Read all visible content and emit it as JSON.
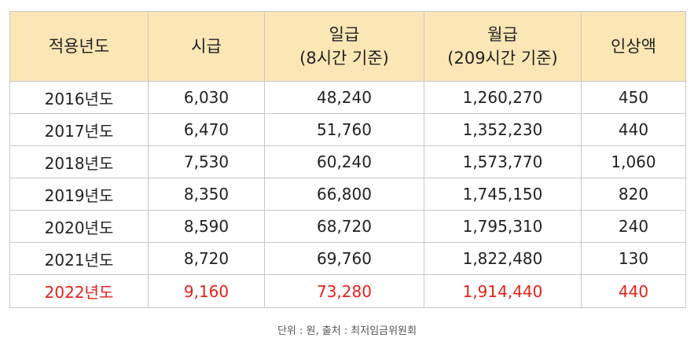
{
  "headers": [
    {
      "line1": "적용년도",
      "line2": ""
    },
    {
      "line1": "시급",
      "line2": ""
    },
    {
      "line1": "일급",
      "line2": "(8시간 기준)"
    },
    {
      "line1": "월급",
      "line2": "(209시간 기준)"
    },
    {
      "line1": "인상액",
      "line2": ""
    }
  ],
  "rows": [
    [
      "2016년도",
      "6,030",
      "48,240",
      "1,260,270",
      "450"
    ],
    [
      "2017년도",
      "6,470",
      "51,760",
      "1,352,230",
      "440"
    ],
    [
      "2018년도",
      "7,530",
      "60,240",
      "1,573,770",
      "1,060"
    ],
    [
      "2019년도",
      "8,350",
      "66,800",
      "1,745,150",
      "820"
    ],
    [
      "2020년도",
      "8,590",
      "68,720",
      "1,795,310",
      "240"
    ],
    [
      "2021년도",
      "8,720",
      "69,760",
      "1,822,480",
      "130"
    ],
    [
      "2022년도",
      "9,160",
      "73,280",
      "1,914,440",
      "440"
    ]
  ],
  "highlight_color": "#e4221c",
  "header_bg": "#fbe6b5",
  "caption": "단위 : 원, 출처 : 최저임금위원회"
}
